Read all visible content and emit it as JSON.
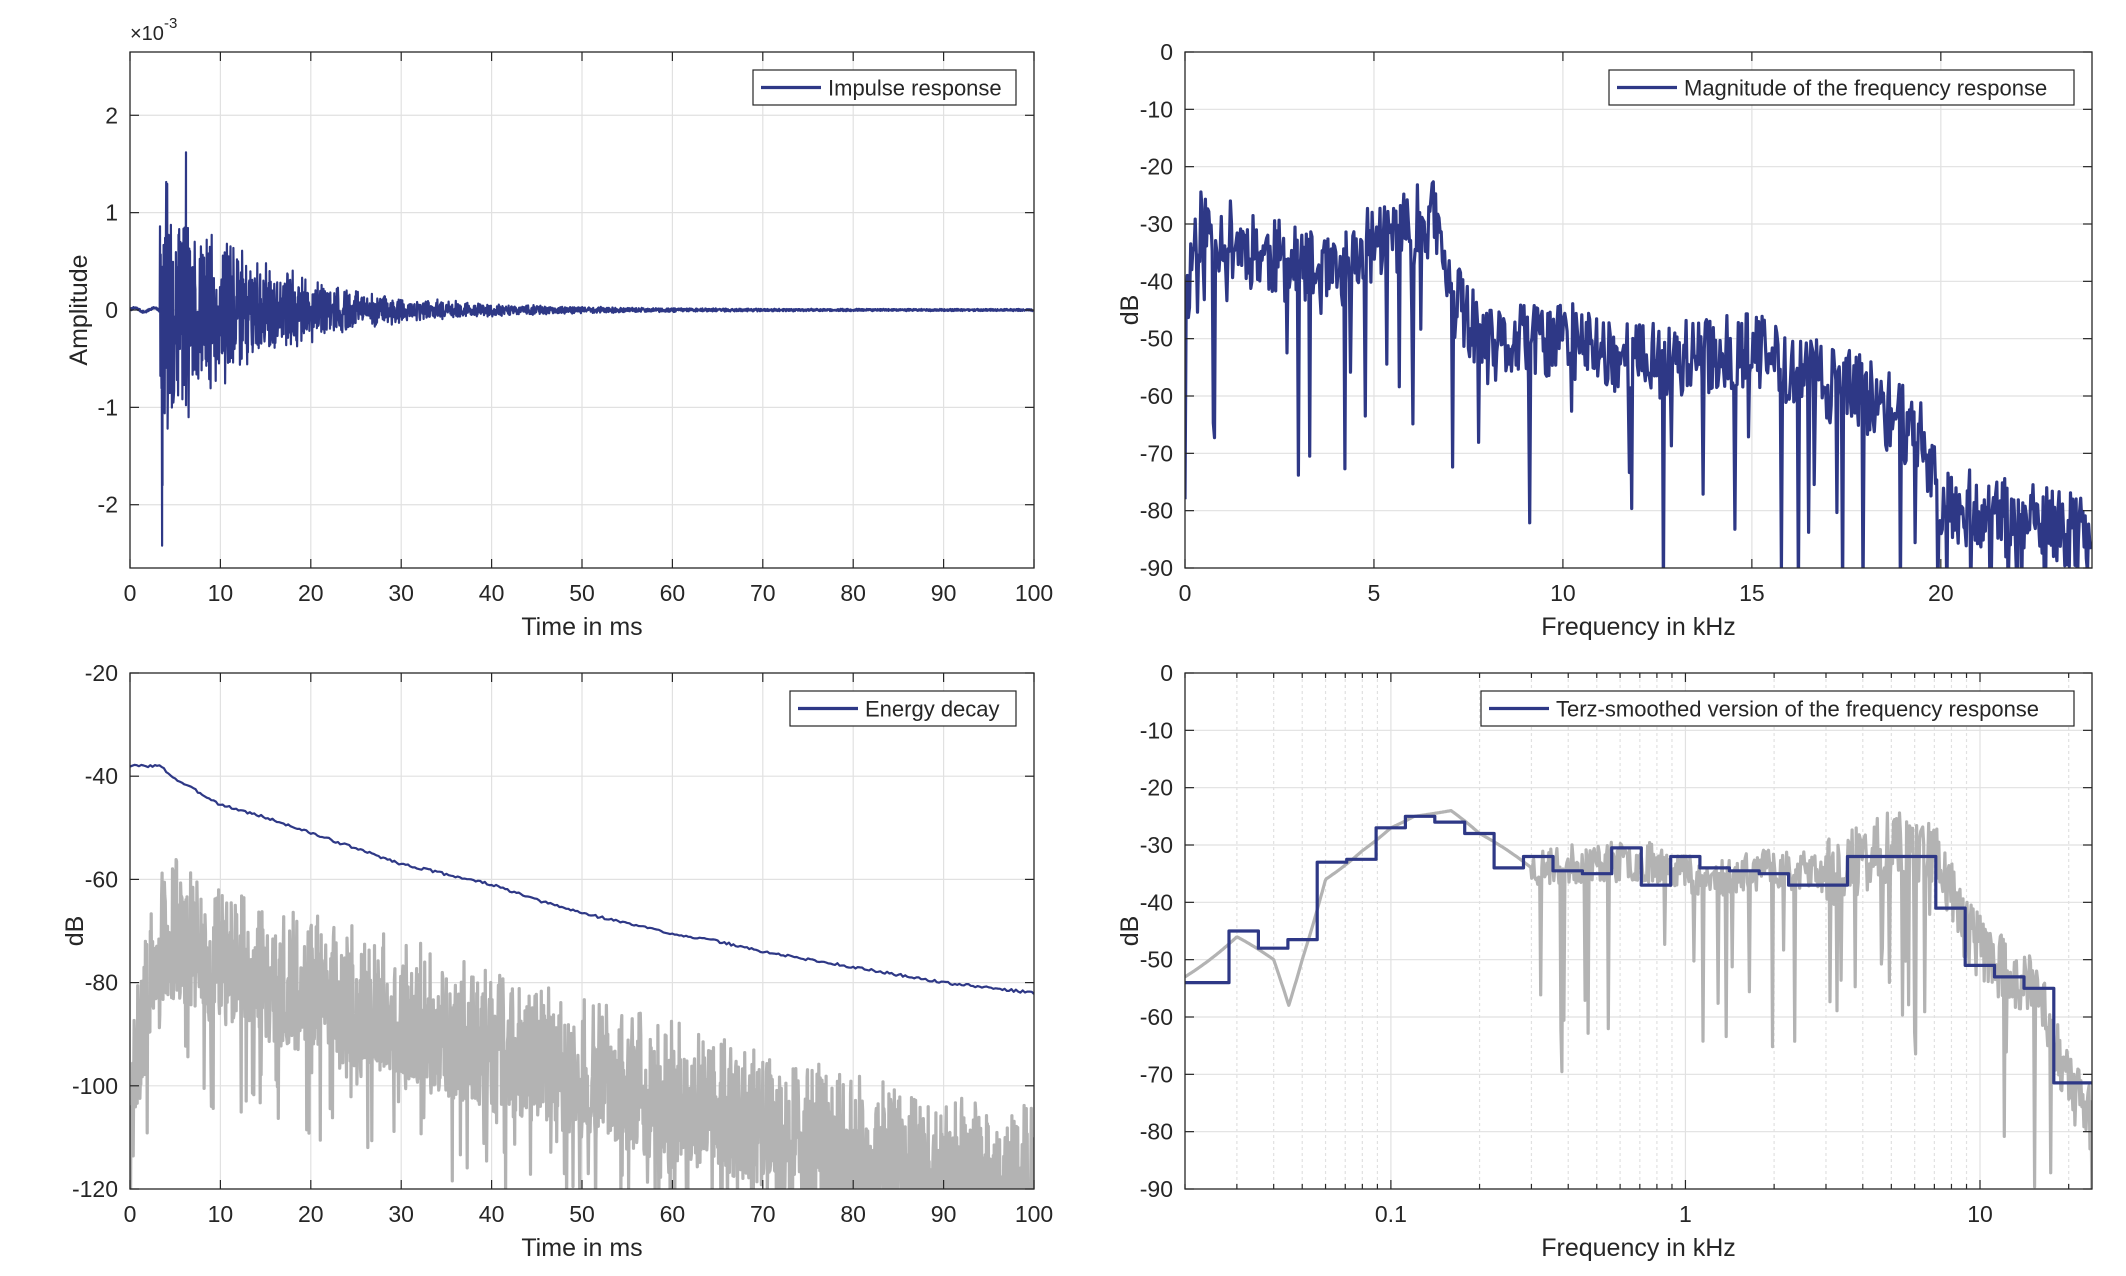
{
  "figure": {
    "background": "#ffffff",
    "axes_color": "#262626",
    "grid_color": "#e1e1e1"
  },
  "chart_data": [
    {
      "id": "impulse",
      "type": "line",
      "xlabel": "Time in ms",
      "ylabel": "Amplitude",
      "xlim": [
        0,
        100
      ],
      "ylim": [
        -2.65,
        2.65
      ],
      "xticks": [
        0,
        10,
        20,
        30,
        40,
        50,
        60,
        70,
        80,
        90,
        100
      ],
      "yticks": [
        -2,
        -1,
        0,
        1,
        2
      ],
      "exponent_label": "×10",
      "exponent_power": "-3",
      "grid": true,
      "legend_position": "top-right",
      "series": [
        {
          "name": "Impulse response",
          "color": "#2e3886",
          "envelope": {
            "onset_ms": 3.3,
            "peak_positive": 1.62,
            "peak_negative": -2.42,
            "peak_ms": 3.6,
            "decay_ms": 11.5,
            "noise_floor": 0.012
          }
        }
      ]
    },
    {
      "id": "magnitude",
      "type": "line",
      "xlabel": "Frequency in kHz",
      "ylabel": "dB",
      "xlim": [
        0,
        24
      ],
      "ylim": [
        -90,
        0
      ],
      "xticks": [
        0,
        5,
        10,
        15,
        20
      ],
      "yticks": [
        0,
        -10,
        -20,
        -30,
        -40,
        -50,
        -60,
        -70,
        -80,
        -90
      ],
      "grid": true,
      "legend_position": "top-right",
      "series": [
        {
          "name": "Magnitude of the frequency response",
          "color": "#2e3886",
          "trend": {
            "x": [
              0,
              0.3,
              2,
              4,
              5,
              6.6,
              7,
              8,
              10,
              12,
              14,
              15,
              16,
              18,
              19.5,
              20,
              22,
              24
            ],
            "y": [
              -45,
              -30,
              -35,
              -40,
              -33,
              -29,
              -42,
              -52,
              -50,
              -54,
              -53,
              -52,
              -55,
              -60,
              -67,
              -78,
              -82,
              -84
            ]
          }
        }
      ]
    },
    {
      "id": "energy",
      "type": "line",
      "xlabel": "Time in ms",
      "ylabel": "dB",
      "xlim": [
        0,
        100
      ],
      "ylim": [
        -120,
        -20
      ],
      "xticks": [
        0,
        10,
        20,
        30,
        40,
        50,
        60,
        70,
        80,
        90,
        100
      ],
      "yticks": [
        -20,
        -40,
        -60,
        -80,
        -100,
        -120
      ],
      "grid": true,
      "legend_position": "top-right",
      "series": [
        {
          "name": "Energy decay",
          "color": "#2e3886",
          "x": [
            0,
            3.3,
            5,
            8,
            10,
            15,
            20,
            25,
            30,
            35,
            40,
            45,
            50,
            55,
            60,
            65,
            70,
            75,
            80,
            85,
            90,
            95,
            100
          ],
          "y": [
            -38,
            -38,
            -40.5,
            -43.5,
            -45.5,
            -48,
            -51,
            -54,
            -57,
            -59,
            -61,
            -64,
            -66.5,
            -68.5,
            -70.5,
            -72,
            -74,
            -75.5,
            -77,
            -78.5,
            -80,
            -81,
            -82
          ]
        },
        {
          "color": "#b3b3b3",
          "envelope": {
            "x": [
              0,
              3.3,
              5,
              10,
              20,
              30,
              40,
              50,
              60,
              70,
              80,
              90,
              100
            ],
            "upper": [
              -84,
              -58,
              -55,
              -61,
              -66,
              -71,
              -77,
              -82,
              -87,
              -92,
              -97,
              -101,
              -104
            ],
            "floor": -120
          }
        }
      ]
    },
    {
      "id": "terz",
      "type": "line",
      "xlabel": "Frequency in kHz",
      "ylabel": "dB",
      "xscale": "log",
      "xlim": [
        0.02,
        24
      ],
      "ylim": [
        -90,
        0
      ],
      "xticks": [
        0.1,
        1,
        10
      ],
      "xticklabels": [
        "0.1",
        "1",
        "10"
      ],
      "yticks": [
        0,
        -10,
        -20,
        -30,
        -40,
        -50,
        -60,
        -70,
        -80,
        -90
      ],
      "grid": true,
      "legend_position": "top-right",
      "series": [
        {
          "name": "Terz-smoothed version of the frequency response",
          "color": "#2e3886",
          "step": true,
          "edges": [
            0.02,
            0.0282,
            0.0355,
            0.0447,
            0.0562,
            0.0708,
            0.0891,
            0.112,
            0.141,
            0.178,
            0.224,
            0.282,
            0.355,
            0.447,
            0.562,
            0.708,
            0.891,
            1.12,
            1.41,
            1.78,
            2.24,
            2.82,
            3.55,
            4.47,
            5.62,
            7.08,
            8.91,
            11.2,
            14.1,
            17.8,
            24
          ],
          "values": [
            -54,
            -45,
            -48,
            -46.5,
            -33,
            -32.5,
            -27,
            -25,
            -26,
            -28,
            -34,
            -32,
            -34.5,
            -35,
            -30.5,
            -37,
            -32,
            -34,
            -34.5,
            -35,
            -37,
            -37,
            -32,
            -32,
            -32,
            -41,
            -51,
            -53,
            -55,
            -71.5
          ]
        },
        {
          "color": "#b3b3b3",
          "trend": {
            "x": [
              0.02,
              0.03,
              0.04,
              0.045,
              0.05,
              0.06,
              0.08,
              0.1,
              0.12,
              0.16,
              0.2,
              0.3,
              0.5,
              0.8,
              1.2,
              2,
              3,
              5,
              7,
              9,
              12,
              16,
              20,
              24
            ],
            "y": [
              -53,
              -46,
              -50,
              -58,
              -50,
              -36,
              -31,
              -27,
              -25,
              -24,
              -28,
              -34,
              -33,
              -33,
              -36,
              -34,
              -35,
              -30,
              -31,
              -45,
              -52,
              -56,
              -72,
              -78
            ]
          }
        }
      ]
    }
  ]
}
